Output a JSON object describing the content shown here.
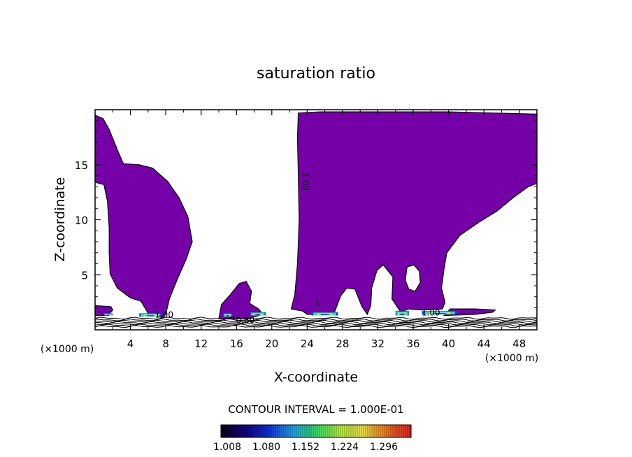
{
  "chart_data": {
    "type": "heatmap",
    "title": "saturation ratio",
    "xlabel": "X-coordinate",
    "ylabel": "Z-coordinate",
    "x_unit_left": "(×1000 m)",
    "x_unit_right": "(×1000 m)",
    "xlim": [
      0,
      50
    ],
    "ylim": [
      0,
      20
    ],
    "x_ticks": [
      4,
      8,
      12,
      16,
      20,
      24,
      28,
      32,
      36,
      40,
      44,
      48
    ],
    "y_ticks": [
      5,
      10,
      15
    ],
    "contour_interval_text": "CONTOUR INTERVAL = 1.000E-01",
    "colorbar_ticks": [
      "1.008",
      "1.080",
      "1.152",
      "1.224",
      "1.296"
    ],
    "contour_labels": [
      {
        "text": "1.00",
        "x": 23.5,
        "y": 13.5,
        "rotate": true
      },
      {
        "text": "0.80",
        "x": 17.0,
        "y": 0.6
      },
      {
        "text": "1.00",
        "x": 7.8,
        "y": 1.1
      },
      {
        "text": "1.00",
        "x": 38.0,
        "y": 1.3
      },
      {
        "text": "1",
        "x": 25.2,
        "y": 2.2
      }
    ],
    "regions": [
      {
        "name": "left-plume",
        "polygon": [
          [
            0,
            19.5
          ],
          [
            0.9,
            19.2
          ],
          [
            1.6,
            18.2
          ],
          [
            2.5,
            16.4
          ],
          [
            3.2,
            15.1
          ],
          [
            5.0,
            15.0
          ],
          [
            6.5,
            14.7
          ],
          [
            8.2,
            13.5
          ],
          [
            9.5,
            12.0
          ],
          [
            10.5,
            10.3
          ],
          [
            11.0,
            8.0
          ],
          [
            10.3,
            6.4
          ],
          [
            9.3,
            4.6
          ],
          [
            8.4,
            2.8
          ],
          [
            8.0,
            1.4
          ],
          [
            7.6,
            1.1
          ],
          [
            6.8,
            1.3
          ],
          [
            6.0,
            1.5
          ],
          [
            5.2,
            2.6
          ],
          [
            4.0,
            2.9
          ],
          [
            2.5,
            3.8
          ],
          [
            1.7,
            5.1
          ],
          [
            1.6,
            7.0
          ],
          [
            1.6,
            9.3
          ],
          [
            1.4,
            11.7
          ],
          [
            1.0,
            13.2
          ],
          [
            0,
            13.4
          ]
        ]
      },
      {
        "name": "left-base-patch",
        "polygon": [
          [
            0,
            1.3
          ],
          [
            1.5,
            1.3
          ],
          [
            2.0,
            1.8
          ],
          [
            1.8,
            2.1
          ],
          [
            0,
            2.2
          ]
        ]
      },
      {
        "name": "center-blob",
        "polygon": [
          [
            14.0,
            1.0
          ],
          [
            14.3,
            2.3
          ],
          [
            15.3,
            3.2
          ],
          [
            16.3,
            4.2
          ],
          [
            17.1,
            4.4
          ],
          [
            17.7,
            3.5
          ],
          [
            17.5,
            2.4
          ],
          [
            18.5,
            1.9
          ],
          [
            19.0,
            1.4
          ],
          [
            17.2,
            1.0
          ],
          [
            15.5,
            1.0
          ]
        ]
      },
      {
        "name": "right-plume",
        "polygon": [
          [
            23.0,
            19.7
          ],
          [
            25.5,
            19.8
          ],
          [
            30,
            19.8
          ],
          [
            35,
            19.8
          ],
          [
            40,
            19.8
          ],
          [
            45,
            19.7
          ],
          [
            50,
            19.6
          ],
          [
            50,
            13.3
          ],
          [
            49.0,
            13.0
          ],
          [
            47.3,
            12.0
          ],
          [
            45.5,
            10.8
          ],
          [
            43.5,
            9.8
          ],
          [
            41.3,
            8.6
          ],
          [
            39.8,
            7.0
          ],
          [
            39.5,
            5.6
          ],
          [
            39.2,
            3.8
          ],
          [
            39.6,
            2.5
          ],
          [
            39.3,
            1.9
          ],
          [
            37.0,
            1.8
          ],
          [
            35.5,
            1.9
          ],
          [
            34.6,
            1.6
          ],
          [
            33.6,
            2.8
          ],
          [
            33.7,
            4.8
          ],
          [
            32.6,
            5.9
          ],
          [
            31.9,
            5.4
          ],
          [
            31.3,
            3.8
          ],
          [
            31.2,
            2.2
          ],
          [
            30.8,
            1.4
          ],
          [
            30.2,
            2.1
          ],
          [
            29.4,
            3.7
          ],
          [
            28.5,
            3.8
          ],
          [
            27.8,
            3.1
          ],
          [
            27.0,
            1.4
          ],
          [
            25.0,
            1.4
          ],
          [
            24.0,
            1.4
          ],
          [
            23.5,
            1.7
          ],
          [
            22.2,
            1.9
          ],
          [
            22.6,
            3.2
          ],
          [
            22.9,
            6.0
          ],
          [
            23.1,
            10.0
          ],
          [
            23.0,
            14.0
          ],
          [
            22.9,
            17.5
          ]
        ]
      },
      {
        "name": "right-base-patch",
        "polygon": [
          [
            39.5,
            1.3
          ],
          [
            43.0,
            1.4
          ],
          [
            45.0,
            1.6
          ],
          [
            45.3,
            1.8
          ],
          [
            43.0,
            1.9
          ],
          [
            40.2,
            1.9
          ]
        ]
      }
    ],
    "holes": [
      {
        "name": "right-plume-hole",
        "polygon": [
          [
            35.3,
            5.7
          ],
          [
            36.1,
            5.9
          ],
          [
            36.7,
            5.3
          ],
          [
            36.8,
            4.3
          ],
          [
            36.2,
            3.5
          ],
          [
            35.5,
            3.7
          ],
          [
            35.1,
            4.5
          ]
        ]
      }
    ],
    "high_value_bands": [
      {
        "x": [
          1.0,
          2.0
        ],
        "y": [
          1.3,
          1.5
        ]
      },
      {
        "x": [
          5.0,
          7.5
        ],
        "y": [
          1.2,
          1.5
        ]
      },
      {
        "x": [
          14.5,
          15.5
        ],
        "y": [
          1.2,
          1.5
        ]
      },
      {
        "x": [
          17.5,
          19.3
        ],
        "y": [
          1.3,
          1.6
        ]
      },
      {
        "x": [
          24.5,
          27.5
        ],
        "y": [
          1.3,
          1.6
        ]
      },
      {
        "x": [
          34.0,
          35.5
        ],
        "y": [
          1.3,
          1.7
        ]
      },
      {
        "x": [
          37.0,
          41.0
        ],
        "y": [
          1.4,
          1.7
        ]
      }
    ],
    "grid": false,
    "colorscale": [
      "#050014",
      "#140080",
      "#1030e0",
      "#20a0f0",
      "#30e060",
      "#b0f040",
      "#f0e040",
      "#f07020",
      "#e02020"
    ]
  }
}
